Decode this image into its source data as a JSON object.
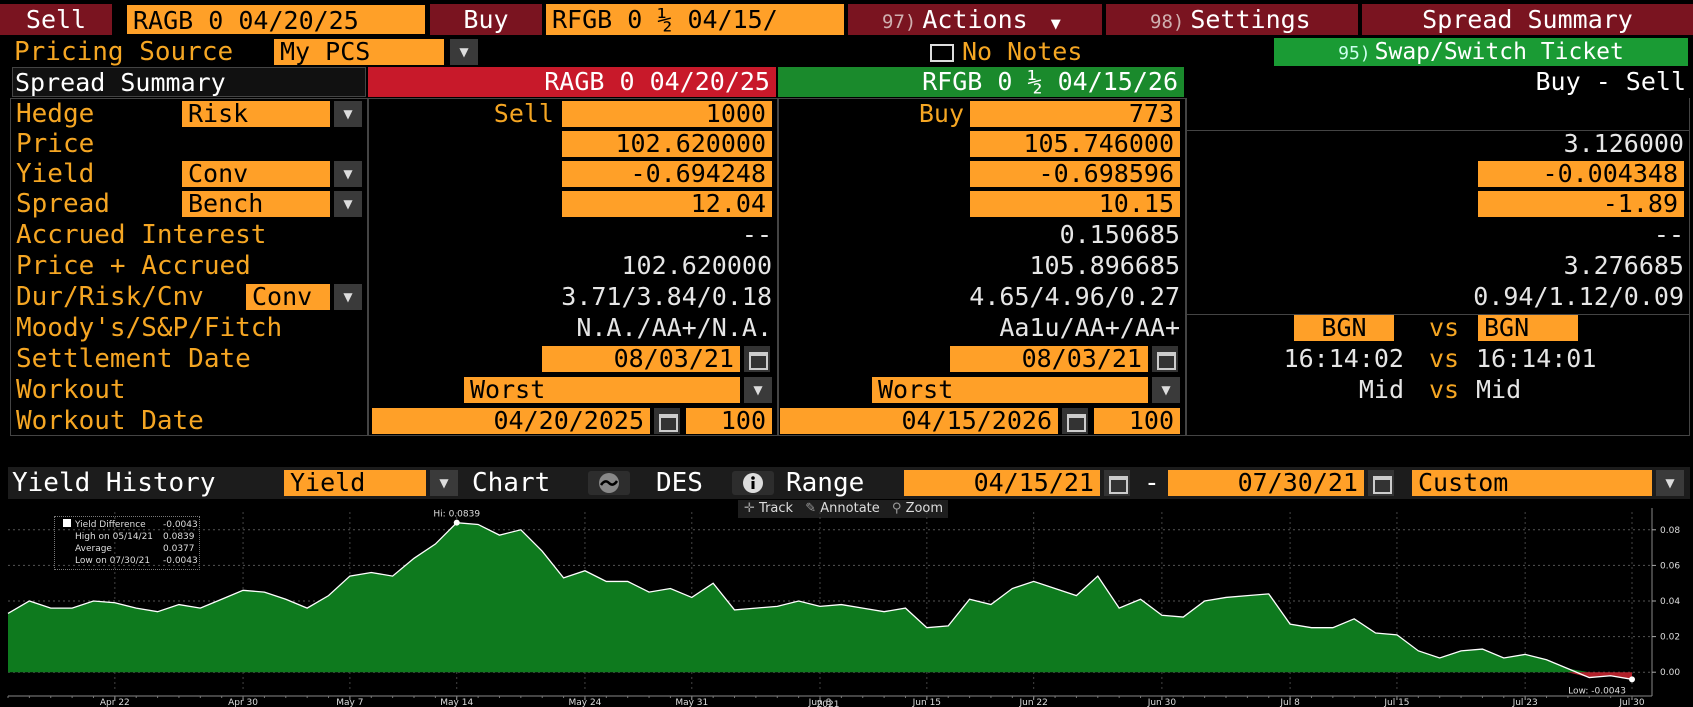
{
  "top": {
    "sell_label": "Sell",
    "sell_ticker": "RAGB 0 04/20/25",
    "buy_label": "Buy",
    "buy_ticker": "RFGB 0 ½ 04/15/",
    "actions_num": "97)",
    "actions_label": "Actions",
    "settings_num": "98)",
    "settings_label": "Settings",
    "summary_label": "Spread Summary"
  },
  "pricing": {
    "label": "Pricing Source",
    "value": "My PCS",
    "notes": "No Notes",
    "swap_num": "95)",
    "swap_label": "Swap/Switch Ticket"
  },
  "header": {
    "summary": "Spread Summary",
    "left_bond": "RAGB 0 04/20/25",
    "right_bond": "RFGB 0 ½ 04/15/26",
    "diff": "Buy - Sell"
  },
  "rows": {
    "hedge": {
      "label": "Hedge",
      "mode": "Risk",
      "sell_label": "Sell",
      "sell_qty": "1000",
      "buy_label": "Buy",
      "buy_qty": "773"
    },
    "price": {
      "label": "Price",
      "left": "102.620000",
      "right": "105.746000",
      "diff": "3.126000"
    },
    "yield": {
      "label": "Yield",
      "mode": "Conv",
      "left": "-0.694248",
      "right": "-0.698596",
      "diff": "-0.004348"
    },
    "spread": {
      "label": "Spread",
      "mode": "Bench",
      "left": "12.04",
      "right": "10.15",
      "diff": "-1.89"
    },
    "accrued": {
      "label": "Accrued Interest",
      "left": "--",
      "right": "0.150685",
      "diff": "--"
    },
    "price_accrued": {
      "label": "Price + Accrued",
      "left": "102.620000",
      "right": "105.896685",
      "diff": "3.276685"
    },
    "dur": {
      "label": "Dur/Risk/Cnv",
      "mode": "Conv",
      "left": "3.71/3.84/0.18",
      "right": "4.65/4.96/0.27",
      "diff": "0.94/1.12/0.09"
    },
    "ratings": {
      "label": "Moody's/S&P/Fitch",
      "left": "N.A./AA+/N.A.",
      "right": "Aa1u/AA+/AA+",
      "src_left": "BGN",
      "vs": "vs",
      "src_right": "BGN"
    },
    "settle": {
      "label": "Settlement Date",
      "left": "08/03/21",
      "right": "08/03/21",
      "time_left": "16:14:02",
      "vs": "vs",
      "time_right": "16:14:01"
    },
    "workout": {
      "label": "Workout",
      "left": "Worst",
      "right": "Worst",
      "mid_left": "Mid",
      "vs": "vs",
      "mid_right": "Mid"
    },
    "workout_date": {
      "label": "Workout Date",
      "left": "04/20/2025",
      "left_px": "100",
      "right": "04/15/2026",
      "right_px": "100"
    }
  },
  "history": {
    "label": "Yield History",
    "type": "Yield",
    "chart_label": "Chart",
    "des_label": "DES",
    "range_label": "Range",
    "from": "04/15/21",
    "dash": "-",
    "to": "07/30/21",
    "period": "Custom",
    "tools": {
      "track": "Track",
      "annotate": "Annotate",
      "zoom": "Zoom"
    }
  },
  "chart_data": {
    "type": "area",
    "color": "#0e7a1e",
    "line_color": "#ffffff",
    "ylim": [
      -0.01,
      0.09
    ],
    "yticks": [
      "0.08",
      "0.06",
      "0.04",
      "0.02",
      "0.00"
    ],
    "xticks": [
      "Apr 22",
      "Apr 30",
      "May 7",
      "May 14",
      "May 24",
      "May 31",
      "Jun 8",
      "Jun 15",
      "Jun 22",
      "Jun 30",
      "Jul 8",
      "Jul 15",
      "Jul 23",
      "Jul 30"
    ],
    "xtick_index": [
      5,
      11,
      16,
      21,
      27,
      32,
      38,
      43,
      48,
      54,
      60,
      65,
      71,
      76
    ],
    "year_label": "2021",
    "hi_label": "Hi: 0.0839",
    "low_label": "Low: -0.0043",
    "legend": {
      "series": "Yield Difference",
      "series_val": "-0.0043",
      "high": "High on 05/14/21",
      "high_val": "0.0839",
      "avg": "Average",
      "avg_val": "0.0377",
      "low": "Low on 07/30/21",
      "low_val": "-0.0043"
    },
    "values": [
      0.033,
      0.04,
      0.036,
      0.036,
      0.04,
      0.039,
      0.036,
      0.034,
      0.038,
      0.036,
      0.041,
      0.046,
      0.045,
      0.041,
      0.036,
      0.043,
      0.054,
      0.056,
      0.054,
      0.064,
      0.072,
      0.084,
      0.083,
      0.077,
      0.08,
      0.068,
      0.053,
      0.057,
      0.051,
      0.051,
      0.045,
      0.047,
      0.042,
      0.05,
      0.035,
      0.036,
      0.037,
      0.04,
      0.037,
      0.038,
      0.036,
      0.034,
      0.036,
      0.025,
      0.026,
      0.041,
      0.038,
      0.047,
      0.051,
      0.047,
      0.043,
      0.054,
      0.036,
      0.041,
      0.032,
      0.031,
      0.04,
      0.042,
      0.043,
      0.044,
      0.027,
      0.025,
      0.025,
      0.03,
      0.022,
      0.021,
      0.012,
      0.008,
      0.012,
      0.013,
      0.008,
      0.01,
      0.007,
      0.002,
      -0.003,
      -0.002,
      -0.004
    ]
  }
}
